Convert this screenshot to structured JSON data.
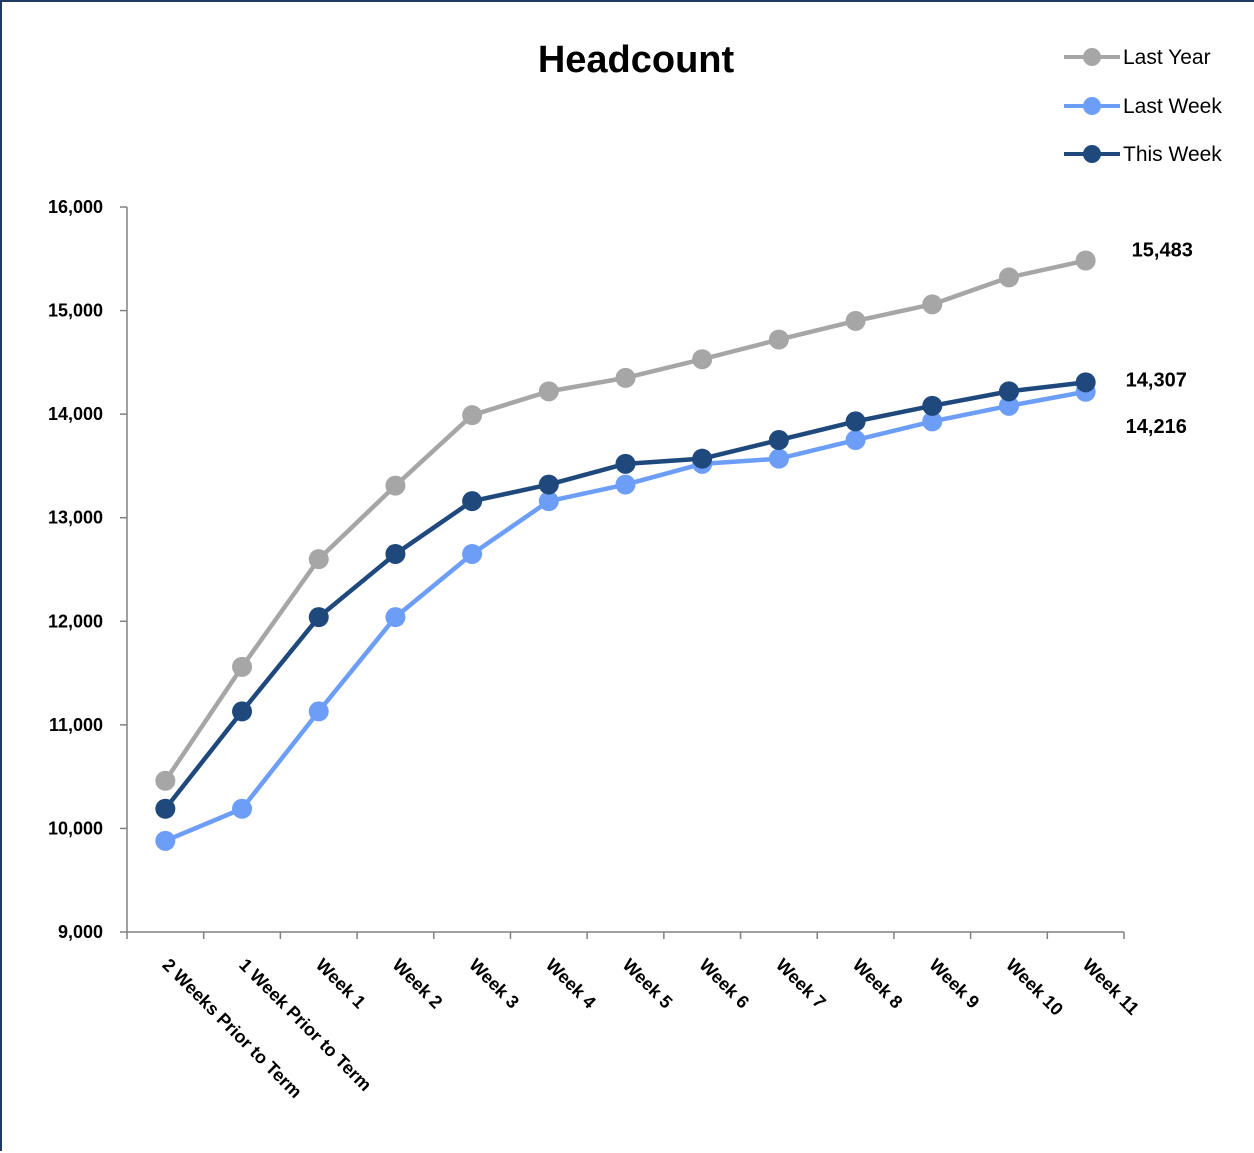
{
  "chart_data": {
    "type": "line",
    "title": "Headcount",
    "xlabel": "",
    "ylabel": "",
    "ylim": [
      9000,
      16000
    ],
    "yticks": [
      9000,
      10000,
      11000,
      12000,
      13000,
      14000,
      15000,
      16000
    ],
    "ytick_labels": [
      "9,000",
      "10,000",
      "11,000",
      "12,000",
      "13,000",
      "14,000",
      "15,000",
      "16,000"
    ],
    "grid": false,
    "legend_position": "top-right",
    "categories": [
      "2 Weeks Prior to Term",
      "1 Week Prior to Term",
      "Week 1",
      "Week 2",
      "Week 3",
      "Week 4",
      "Week 5",
      "Week 6",
      "Week 7",
      "Week 8",
      "Week 9",
      "Week 10",
      "Week 11"
    ],
    "series": [
      {
        "name": "Last Year",
        "color": "#A6A6A6",
        "values": [
          10460,
          11560,
          12600,
          13310,
          13990,
          14220,
          14350,
          14530,
          14720,
          14900,
          15060,
          15320,
          15483
        ],
        "end_label": "15,483"
      },
      {
        "name": "Last Week",
        "color": "#6C9EF8",
        "values": [
          9880,
          10190,
          11130,
          12040,
          12650,
          13160,
          13320,
          13520,
          13570,
          13750,
          13930,
          14080,
          14216
        ],
        "end_label": "14,216"
      },
      {
        "name": "This Week",
        "color": "#1F497D",
        "values": [
          10190,
          11130,
          12040,
          12650,
          13160,
          13320,
          13520,
          13570,
          13750,
          13930,
          14080,
          14220,
          14307
        ],
        "end_label": "14,307"
      }
    ]
  }
}
